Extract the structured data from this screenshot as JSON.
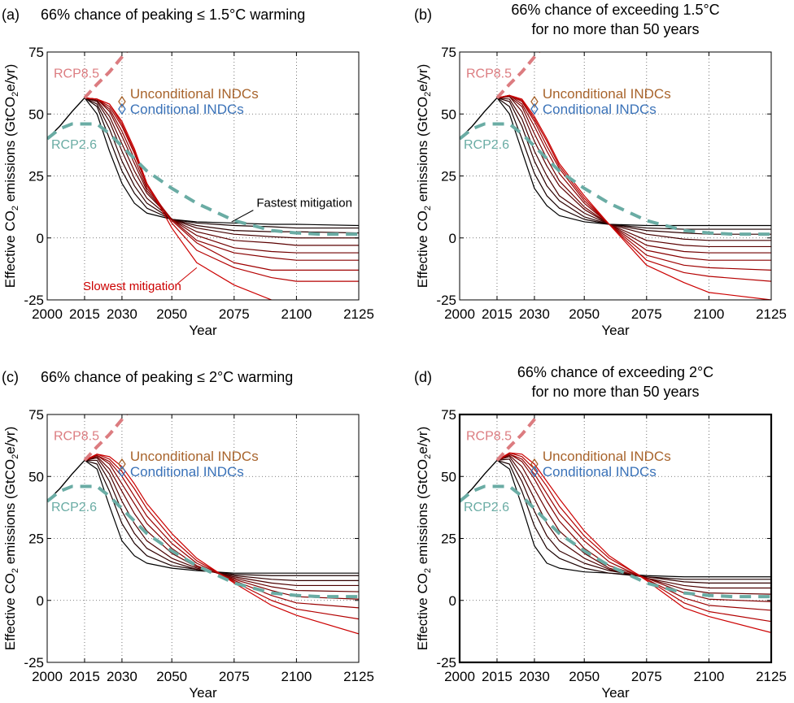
{
  "figure": {
    "panels": [
      {
        "tag": "(a)",
        "title_lines": [
          "66% chance of peaking ≤ 1.5°C warming"
        ],
        "fastest_label": "Fastest mitigation",
        "slowest_label": "Slowest mitigation"
      },
      {
        "tag": "(b)",
        "title_lines": [
          "66% chance of exceeding 1.5°C",
          "for no more than 50 years"
        ]
      },
      {
        "tag": "(c)",
        "title_lines": [
          "66% chance of peaking ≤ 2°C warming"
        ]
      },
      {
        "tag": "(d)",
        "title_lines": [
          "66% chance of exceeding 2°C",
          "for no more than 50 years"
        ]
      }
    ],
    "colors": {
      "rcp85": "#dc7c80",
      "rcp26": "#6aaca4",
      "unconditional": "#a8642c",
      "conditional": "#3a72b8",
      "fastest": "#000000",
      "slowest": "#cc0000"
    }
  },
  "chart_data": [
    {
      "type": "line",
      "panel": "(a)",
      "title": "66% chance of peaking ≤ 1.5°C warming",
      "xlabel": "Year",
      "ylabel": "Effective CO2 emissions (GtCO2e/yr)",
      "xlim": [
        2000,
        2125
      ],
      "ylim": [
        -25,
        75
      ],
      "xticks": [
        2000,
        2015,
        2030,
        2050,
        2075,
        2100,
        2125
      ],
      "yticks": [
        -25,
        0,
        25,
        50,
        75
      ],
      "grid": true,
      "history": {
        "x": [
          2000,
          2005,
          2010,
          2015
        ],
        "y": [
          40,
          45,
          51,
          56.5
        ]
      },
      "rcp85": {
        "name": "RCP8.5",
        "x": [
          2015,
          2020,
          2025,
          2030,
          2035
        ],
        "y": [
          56.5,
          62,
          67,
          73,
          79
        ]
      },
      "rcp26": {
        "name": "RCP2.6",
        "x": [
          2000,
          2005,
          2010,
          2015,
          2020,
          2025,
          2030,
          2040,
          2050,
          2060,
          2075,
          2090,
          2100,
          2110,
          2125
        ],
        "y": [
          40,
          44,
          46,
          46,
          46,
          42,
          37,
          27,
          20,
          14,
          7,
          3,
          2,
          1.5,
          1.5
        ]
      },
      "unconditional_indcs": {
        "name": "Unconditional INDCs",
        "x": 2030,
        "y": 55
      },
      "conditional_indcs": {
        "name": "Conditional INDCs",
        "x": 2030,
        "y": 52
      },
      "scenarios": {
        "x": [
          2015,
          2020,
          2025,
          2030,
          2035,
          2040,
          2050,
          2060,
          2075,
          2090,
          2100,
          2125
        ],
        "series": [
          {
            "y": [
              56.5,
              50,
              35,
              22,
              14,
              10,
              7.5,
              6.5,
              6,
              5.5,
              5.5,
              5
            ]
          },
          {
            "y": [
              56.5,
              53,
              40,
              27,
              18,
              12,
              7.5,
              6,
              5,
              4.5,
              4,
              4
            ]
          },
          {
            "y": [
              56.5,
              54,
              44,
              31,
              21,
              14,
              7.5,
              5,
              3,
              2.5,
              2.5,
              2
            ]
          },
          {
            "y": [
              56.5,
              55,
              47,
              35,
              24,
              16,
              7.5,
              4,
              1.5,
              0.5,
              0,
              0
            ]
          },
          {
            "y": [
              56.5,
              55.5,
              49,
              38,
              27,
              18,
              7.5,
              2.5,
              -1,
              -2,
              -3,
              -3
            ]
          },
          {
            "y": [
              56.5,
              56,
              51,
              41,
              30,
              19,
              7.5,
              1,
              -4,
              -5.5,
              -6,
              -6
            ]
          },
          {
            "y": [
              56.5,
              56,
              52,
              43,
              32,
              20,
              7.5,
              -1,
              -6,
              -8,
              -9,
              -9
            ]
          },
          {
            "y": [
              56.5,
              56,
              53,
              45,
              34,
              21,
              7,
              -2,
              -10,
              -13,
              -13,
              -13
            ]
          },
          {
            "y": [
              56.5,
              56,
              54,
              46,
              35,
              22,
              6,
              -5,
              -12,
              -16,
              -17.5,
              -17.5
            ]
          },
          {
            "y": [
              56.5,
              56,
              54,
              47,
              36,
              22,
              4,
              -10,
              -19,
              -25,
              -28,
              -30
            ]
          }
        ]
      }
    },
    {
      "type": "line",
      "panel": "(b)",
      "title": "66% chance of exceeding 1.5°C for no more than 50 years",
      "xlabel": "Year",
      "ylabel": "Effective CO2 emissions (GtCO2e/yr)",
      "xlim": [
        2000,
        2125
      ],
      "ylim": [
        -25,
        75
      ],
      "xticks": [
        2000,
        2015,
        2030,
        2050,
        2075,
        2100,
        2125
      ],
      "yticks": [
        -25,
        0,
        25,
        50,
        75
      ],
      "grid": true,
      "history": {
        "x": [
          2000,
          2005,
          2010,
          2015
        ],
        "y": [
          40,
          45,
          51,
          56.5
        ]
      },
      "rcp85": {
        "name": "RCP8.5",
        "x": [
          2015,
          2020,
          2025,
          2030,
          2035
        ],
        "y": [
          56.5,
          62,
          67,
          73,
          79
        ]
      },
      "rcp26": {
        "name": "RCP2.6",
        "x": [
          2000,
          2005,
          2010,
          2015,
          2020,
          2025,
          2030,
          2040,
          2050,
          2060,
          2075,
          2090,
          2100,
          2110,
          2125
        ],
        "y": [
          40,
          44,
          46,
          46,
          46,
          42,
          37,
          27,
          20,
          14,
          7,
          3,
          2,
          1.5,
          1.5
        ]
      },
      "unconditional_indcs": {
        "name": "Unconditional INDCs",
        "x": 2030,
        "y": 55
      },
      "conditional_indcs": {
        "name": "Conditional INDCs",
        "x": 2030,
        "y": 52
      },
      "scenarios": {
        "x": [
          2015,
          2020,
          2025,
          2030,
          2035,
          2040,
          2050,
          2060,
          2075,
          2090,
          2100,
          2125
        ],
        "series": [
          {
            "y": [
              56.5,
              50,
              35,
              20,
              13,
              9,
              6.5,
              5.5,
              5,
              5,
              5,
              5
            ]
          },
          {
            "y": [
              56.5,
              53,
              40,
              26,
              17,
              12,
              7.5,
              5.5,
              4,
              3.5,
              3.5,
              3.5
            ]
          },
          {
            "y": [
              56.5,
              55,
              45,
              31,
              21,
              15,
              8.5,
              5.5,
              3,
              2,
              1.5,
              1.5
            ]
          },
          {
            "y": [
              56.5,
              56,
              48,
              35,
              25,
              17,
              10,
              5.5,
              1.5,
              -0.5,
              -1,
              -1
            ]
          },
          {
            "y": [
              56.5,
              57,
              51,
              39,
              29,
              21,
              11.5,
              5.5,
              -1,
              -3,
              -3.5,
              -3.5
            ]
          },
          {
            "y": [
              56.5,
              57,
              53,
              42,
              32,
              23,
              12.5,
              5.5,
              -3,
              -5.5,
              -6,
              -6
            ]
          },
          {
            "y": [
              56.5,
              57.5,
              54,
              45,
              35,
              26,
              14,
              5.5,
              -5,
              -8,
              -9,
              -9
            ]
          },
          {
            "y": [
              56.5,
              57.5,
              55,
              47,
              37,
              28,
              15,
              5.5,
              -7,
              -11,
              -12,
              -13
            ]
          },
          {
            "y": [
              56.5,
              57.5,
              55.5,
              48,
              39,
              29,
              16,
              5.5,
              -9,
              -14,
              -15.5,
              -17.5
            ]
          },
          {
            "y": [
              56.5,
              57.5,
              56,
              49,
              40,
              30,
              17,
              5.5,
              -11,
              -18,
              -22,
              -25
            ]
          }
        ]
      }
    },
    {
      "type": "line",
      "panel": "(c)",
      "title": "66% chance of peaking ≤ 2°C warming",
      "xlabel": "Year",
      "ylabel": "Effective CO2 emissions (GtCO2e/yr)",
      "xlim": [
        2000,
        2125
      ],
      "ylim": [
        -25,
        75
      ],
      "xticks": [
        2000,
        2015,
        2030,
        2050,
        2075,
        2100,
        2125
      ],
      "yticks": [
        -25,
        0,
        25,
        50,
        75
      ],
      "grid": true,
      "history": {
        "x": [
          2000,
          2005,
          2010,
          2015
        ],
        "y": [
          40,
          45,
          51,
          56.5
        ]
      },
      "rcp85": {
        "name": "RCP8.5",
        "x": [
          2015,
          2020,
          2025,
          2030,
          2035
        ],
        "y": [
          56.5,
          62,
          67,
          73,
          79
        ]
      },
      "rcp26": {
        "name": "RCP2.6",
        "x": [
          2000,
          2005,
          2010,
          2015,
          2020,
          2025,
          2030,
          2040,
          2050,
          2060,
          2075,
          2090,
          2100,
          2110,
          2125
        ],
        "y": [
          40,
          44,
          46,
          46,
          46,
          42,
          37,
          27,
          20,
          14,
          7,
          3,
          2,
          1.5,
          1.5
        ]
      },
      "unconditional_indcs": {
        "name": "Unconditional INDCs",
        "x": 2030,
        "y": 55
      },
      "conditional_indcs": {
        "name": "Conditional INDCs",
        "x": 2030,
        "y": 52
      },
      "scenarios": {
        "x": [
          2015,
          2020,
          2025,
          2030,
          2035,
          2040,
          2050,
          2060,
          2075,
          2090,
          2100,
          2125
        ],
        "series": [
          {
            "y": [
              56.5,
              53,
              38,
              24,
              18,
              15,
              13,
              12,
              11,
              11,
              11,
              11
            ]
          },
          {
            "y": [
              56.5,
              55,
              44,
              31,
              23,
              18,
              14,
              12.5,
              10.5,
              10,
              10,
              10
            ]
          },
          {
            "y": [
              56.5,
              56.5,
              48,
              36,
              27,
              21,
              15.5,
              12.5,
              10,
              8.5,
              8,
              8
            ]
          },
          {
            "y": [
              56.5,
              57.5,
              51,
              40,
              31,
              24,
              17,
              13,
              9.5,
              7,
              6,
              6
            ]
          },
          {
            "y": [
              56.5,
              58,
              53,
              44,
              35,
              28,
              19,
              13.5,
              9,
              5.5,
              4,
              3.5
            ]
          },
          {
            "y": [
              56.5,
              58.5,
              55,
              47,
              39,
              31,
              21,
              14,
              8.5,
              4,
              1.5,
              0.5
            ]
          },
          {
            "y": [
              56.5,
              58.5,
              56,
              50,
              42,
              34,
              23,
              15,
              8,
              2,
              -1,
              -3
            ]
          },
          {
            "y": [
              56.5,
              59,
              57,
              52,
              45,
              37,
              25,
              16,
              7.5,
              0,
              -3.5,
              -7.5
            ]
          },
          {
            "y": [
              56.5,
              59,
              58,
              54,
              47,
              39,
              27,
              17,
              7,
              -2,
              -6,
              -13.5
            ]
          }
        ]
      }
    },
    {
      "type": "line",
      "panel": "(d)",
      "title": "66% chance of exceeding 2°C for no more than 50 years",
      "xlabel": "Year",
      "ylabel": "Effective CO2 emissions (GtCO2e/yr)",
      "xlim": [
        2000,
        2125
      ],
      "ylim": [
        -25,
        75
      ],
      "xticks": [
        2000,
        2015,
        2030,
        2050,
        2075,
        2100,
        2125
      ],
      "yticks": [
        -25,
        0,
        25,
        50,
        75
      ],
      "grid": true,
      "history": {
        "x": [
          2000,
          2005,
          2010,
          2015
        ],
        "y": [
          40,
          45,
          51,
          56.5
        ]
      },
      "rcp85": {
        "name": "RCP8.5",
        "x": [
          2015,
          2020,
          2025,
          2030,
          2035
        ],
        "y": [
          56.5,
          62,
          67,
          73,
          79
        ]
      },
      "rcp26": {
        "name": "RCP2.6",
        "x": [
          2000,
          2005,
          2010,
          2015,
          2020,
          2025,
          2030,
          2040,
          2050,
          2060,
          2075,
          2090,
          2100,
          2110,
          2125
        ],
        "y": [
          40,
          44,
          46,
          46,
          46,
          42,
          37,
          27,
          20,
          14,
          7,
          3,
          2,
          1.5,
          1.5
        ]
      },
      "unconditional_indcs": {
        "name": "Unconditional INDCs",
        "x": 2030,
        "y": 55
      },
      "conditional_indcs": {
        "name": "Conditional INDCs",
        "x": 2030,
        "y": 52
      },
      "scenarios": {
        "x": [
          2015,
          2020,
          2025,
          2030,
          2035,
          2040,
          2050,
          2060,
          2075,
          2090,
          2100,
          2125
        ],
        "series": [
          {
            "y": [
              56.5,
              53,
              38,
              22,
              15,
              13,
              11.5,
              11,
              10,
              9.5,
              9.5,
              9.5
            ]
          },
          {
            "y": [
              56.5,
              55,
              44,
              30,
              21,
              17,
              13,
              11,
              9.5,
              8.5,
              8.5,
              8.5
            ]
          },
          {
            "y": [
              56.5,
              57,
              48,
              36,
              26,
              20,
              15,
              12,
              9.5,
              7.5,
              7,
              7
            ]
          },
          {
            "y": [
              56.5,
              58,
              51,
              41,
              31,
              24,
              17,
              12.5,
              9,
              6,
              5,
              5
            ]
          },
          {
            "y": [
              56.5,
              58.5,
              54,
              45,
              36,
              28,
              19,
              13,
              9,
              4.5,
              3,
              2.5
            ]
          },
          {
            "y": [
              56.5,
              59,
              56,
              49,
              40,
              32,
              21,
              14,
              9,
              3,
              0.5,
              -0.5
            ]
          },
          {
            "y": [
              56.5,
              59,
              57,
              51,
              43,
              35,
              24,
              15.5,
              8.5,
              1,
              -2,
              -4
            ]
          },
          {
            "y": [
              56.5,
              59.5,
              58,
              53,
              46,
              38,
              26,
              17,
              8.5,
              -1,
              -4.5,
              -8.5
            ]
          },
          {
            "y": [
              56.5,
              59.5,
              59,
              55,
              48,
              41,
              28,
              18,
              8,
              -3,
              -6.5,
              -13
            ]
          }
        ]
      }
    }
  ]
}
